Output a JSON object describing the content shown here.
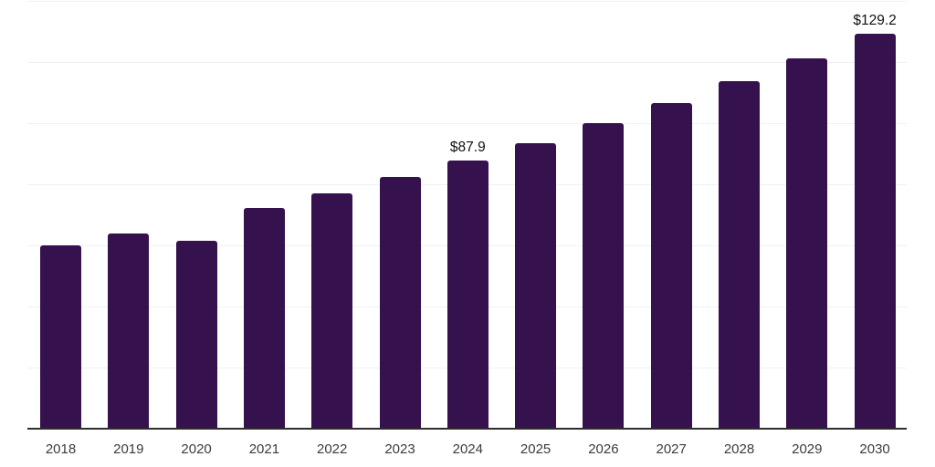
{
  "chart_data": {
    "type": "bar",
    "title": "",
    "xlabel": "",
    "ylabel": "",
    "categories": [
      "2018",
      "2019",
      "2020",
      "2021",
      "2022",
      "2023",
      "2024",
      "2025",
      "2026",
      "2027",
      "2028",
      "2029",
      "2030"
    ],
    "values": [
      60.0,
      63.9,
      61.5,
      72.2,
      77.0,
      82.4,
      87.9,
      93.4,
      100.0,
      106.6,
      113.7,
      121.2,
      129.2
    ],
    "data_labels": [
      "",
      "",
      "",
      "",
      "",
      "",
      "$87.9",
      "",
      "",
      "",
      "",
      "",
      "$129.2"
    ],
    "ylim": [
      0,
      140
    ],
    "grid_step": 20,
    "grid": "horizontal-light",
    "legend": "none",
    "y_axis_tick_labels_visible": false,
    "bar_color": "#35114e",
    "axis_line_color": "#2e2e2e",
    "grid_line_color": "#f1f1f4",
    "tick_label_color": "#3b3b3b",
    "data_label_color": "#111111"
  }
}
